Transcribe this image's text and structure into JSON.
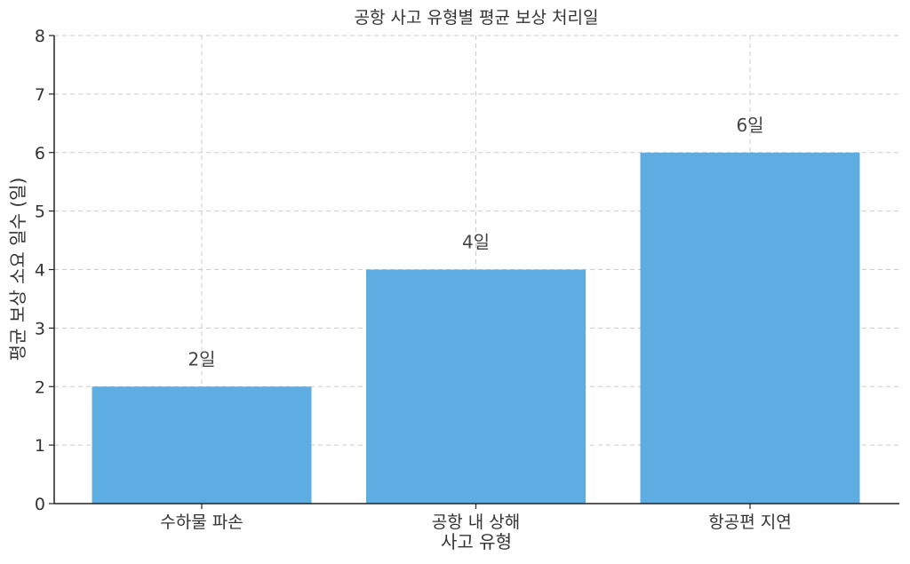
{
  "chart_data": {
    "type": "bar",
    "title": "공항 사고 유형별 평균 보상 처리일",
    "xlabel": "사고 유형",
    "ylabel": "평균 보상 소요 일수 (일)",
    "categories": [
      "수하물 파손",
      "공항 내 상해",
      "항공편 지연"
    ],
    "values": [
      2,
      4,
      6
    ],
    "data_labels": [
      "2일",
      "4일",
      "6일"
    ],
    "yticks": [
      "0",
      "1",
      "2",
      "3",
      "4",
      "5",
      "6",
      "7",
      "8"
    ],
    "ylim": [
      0,
      8
    ],
    "grid": true,
    "bar_color": "#5DADE2"
  }
}
